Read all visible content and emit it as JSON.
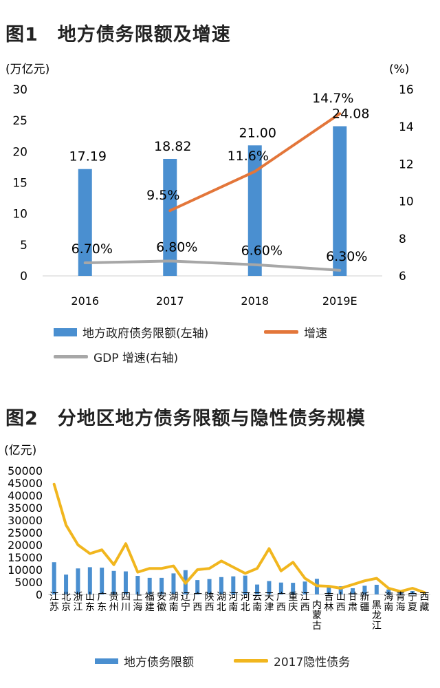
{
  "chart_data": [
    {
      "type": "bar",
      "title": "图1　地方债务限额及增速",
      "left_unit": "(万亿元)",
      "right_unit": "(%)",
      "categories": [
        "2016",
        "2017",
        "2018",
        "2019E"
      ],
      "y_left_ticks": [
        "30",
        "25",
        "20",
        "15",
        "10",
        "5",
        "0"
      ],
      "y_left_range": [
        0,
        30
      ],
      "y_right_ticks": [
        "16",
        "14",
        "12",
        "10",
        "8",
        "6"
      ],
      "y_right_range": [
        6,
        16
      ],
      "series": [
        {
          "name": "地方政府债务限额(左轴)",
          "type": "bar",
          "axis": "left",
          "values": [
            17.19,
            18.82,
            21.0,
            24.08
          ],
          "labels": [
            "17.19",
            "18.82",
            "21.00",
            "24.08"
          ]
        },
        {
          "name": "增速",
          "type": "line",
          "axis": "right",
          "values": [
            null,
            9.5,
            11.6,
            14.7
          ],
          "labels": [
            "",
            "9.5%",
            "11.6%",
            "14.7%"
          ]
        },
        {
          "name": "GDP 增速(右轴)",
          "type": "line",
          "axis": "right",
          "values": [
            6.7,
            6.8,
            6.6,
            6.3
          ],
          "labels": [
            "6.70%",
            "6.80%",
            "6.60%",
            "6.30%"
          ]
        }
      ],
      "colors": {
        "bar": "#4a8fd0",
        "growth": "#e3763a",
        "gdp": "#a7a7a7"
      }
    },
    {
      "type": "bar",
      "title": "图2　分地区地方债务限额与隐性债务规模",
      "unit": "(亿元)",
      "y_ticks": [
        "50000",
        "45000",
        "40000",
        "35000",
        "30000",
        "25000",
        "20000",
        "15000",
        "10000",
        "5000",
        "0"
      ],
      "y_range": [
        0,
        50000
      ],
      "categories": [
        "江苏",
        "北京",
        "浙江",
        "山东",
        "广东",
        "贵州",
        "四川",
        "上海",
        "福建",
        "安徽",
        "湖南",
        "辽宁",
        "广西",
        "陕西",
        "湖北",
        "河南",
        "河北",
        "云南",
        "天津",
        "广西",
        "重庆",
        "江西",
        "内蒙古",
        "吉林",
        "山西",
        "甘肃",
        "新疆",
        "黑龙江",
        "海南",
        "青海",
        "宁夏",
        "西藏"
      ],
      "series": [
        {
          "name": "地方债务限额",
          "type": "bar",
          "values": [
            13000,
            8000,
            10500,
            11000,
            10800,
            9500,
            9300,
            7500,
            6700,
            6700,
            8500,
            9800,
            5800,
            6200,
            7000,
            7300,
            7600,
            4000,
            5400,
            4800,
            4700,
            5200,
            6300,
            3200,
            3300,
            2500,
            3500,
            3900,
            2000,
            1700,
            1400,
            200
          ]
        },
        {
          "name": "2017隐性债务",
          "type": "line",
          "values": [
            44500,
            28000,
            20000,
            16500,
            18000,
            12000,
            20500,
            9000,
            10500,
            10500,
            11500,
            4500,
            10000,
            10500,
            13500,
            11000,
            8500,
            10500,
            18500,
            9500,
            13000,
            6500,
            3500,
            3300,
            2500,
            4000,
            5500,
            6500,
            2500,
            1200,
            2500,
            800
          ]
        }
      ],
      "colors": {
        "bar": "#4a8fd0",
        "line": "#f1b61e"
      }
    }
  ]
}
